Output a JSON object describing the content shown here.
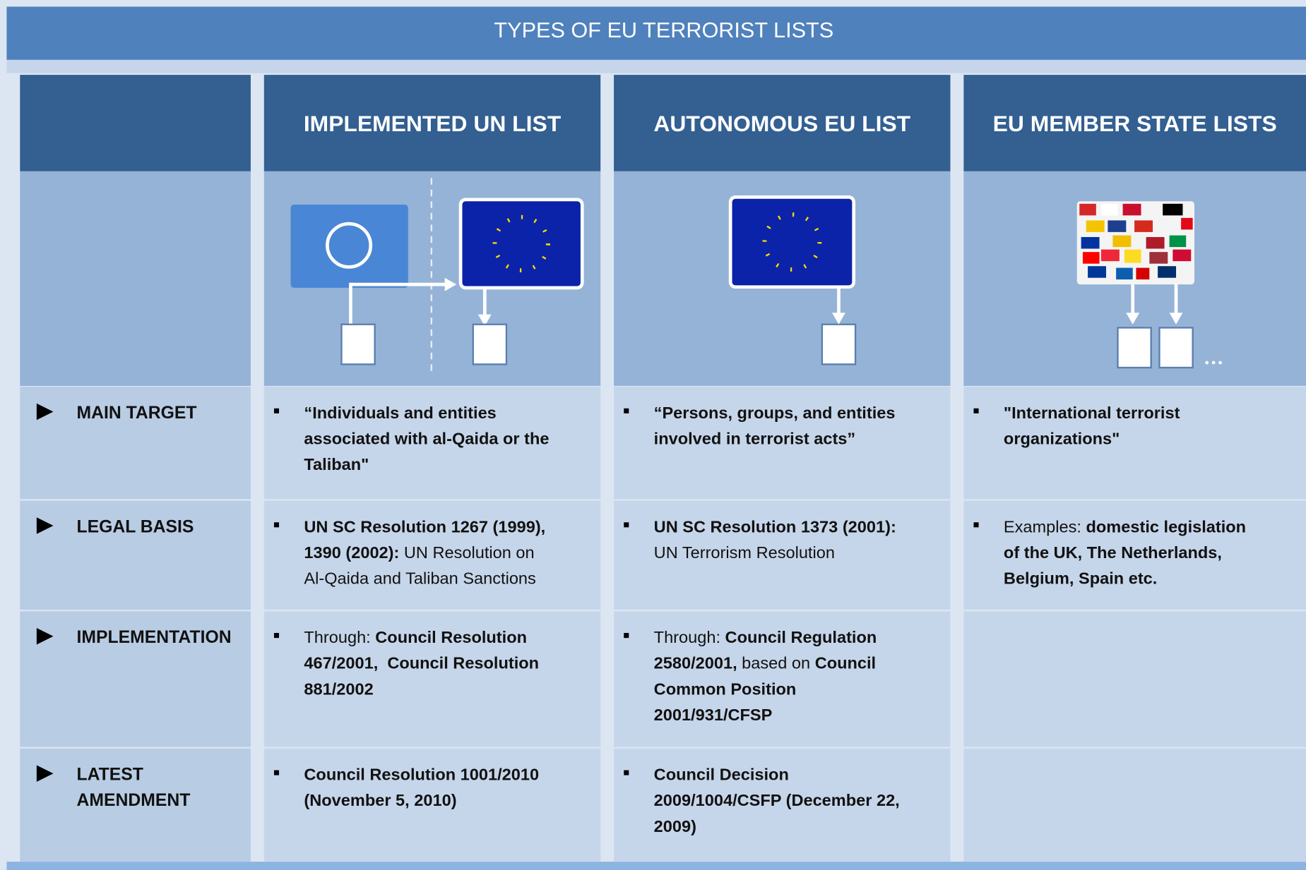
{
  "title": "TYPES OF EU TERRORIST LISTS",
  "columns": [
    "IMPLEMENTED UN LIST",
    "AUTONOMOUS EU LIST",
    "EU MEMBER STATE LISTS"
  ],
  "rows": [
    {
      "label": [
        "MAIN TARGET"
      ],
      "cells": [
        [
          [
            {
              "text": "“Individuals and entities",
              "bold": true
            }
          ],
          [
            {
              "text": "associated with al-Qaida or the",
              "bold": true
            }
          ],
          [
            {
              "text": "Taliban\"",
              "bold": true
            }
          ]
        ],
        [
          [
            {
              "text": "“Persons, groups, and entities",
              "bold": true
            }
          ],
          [
            {
              "text": "involved in terrorist acts”",
              "bold": true
            }
          ]
        ],
        [
          [
            {
              "text": "\"International terrorist",
              "bold": true
            }
          ],
          [
            {
              "text": "organizations\"",
              "bold": true
            }
          ]
        ]
      ]
    },
    {
      "label": [
        "LEGAL BASIS"
      ],
      "cells": [
        [
          [
            {
              "text": "UN SC Resolution 1267 (1999),",
              "bold": true
            }
          ],
          [
            {
              "text": "1390 (2002):",
              "bold": true
            },
            {
              "text": " UN Resolution on",
              "bold": false
            }
          ],
          [
            {
              "text": "Al-Qaida and Taliban Sanctions",
              "bold": false
            }
          ]
        ],
        [
          [
            {
              "text": "UN SC Resolution 1373 (2001):",
              "bold": true
            }
          ],
          [
            {
              "text": "UN Terrorism Resolution",
              "bold": false
            }
          ]
        ],
        [
          [
            {
              "text": "Examples: ",
              "bold": false
            },
            {
              "text": "domestic legislation",
              "bold": true
            }
          ],
          [
            {
              "text": "of the UK, The Netherlands,",
              "bold": true
            }
          ],
          [
            {
              "text": "Belgium, Spain etc.",
              "bold": true
            }
          ]
        ]
      ]
    },
    {
      "label": [
        "IMPLEMENTATION"
      ],
      "cells": [
        [
          [
            {
              "text": "Through: ",
              "bold": false
            },
            {
              "text": "Council Resolution",
              "bold": true
            }
          ],
          [
            {
              "text": "467/2001,  Council Resolution",
              "bold": true
            }
          ],
          [
            {
              "text": "881/2002",
              "bold": true
            }
          ]
        ],
        [
          [
            {
              "text": "Through: ",
              "bold": false
            },
            {
              "text": "Council Regulation",
              "bold": true
            }
          ],
          [
            {
              "text": "2580/2001,",
              "bold": true
            },
            {
              "text": " based on ",
              "bold": false
            },
            {
              "text": "Council",
              "bold": true
            }
          ],
          [
            {
              "text": "Common Position",
              "bold": true
            }
          ],
          [
            {
              "text": "2001/931/CFSP",
              "bold": true
            }
          ]
        ],
        []
      ]
    },
    {
      "label": [
        "LATEST",
        "AMENDMENT"
      ],
      "cells": [
        [
          [
            {
              "text": "Council Resolution 1001/2010",
              "bold": true
            }
          ],
          [
            {
              "text": "(November 5, 2010)",
              "bold": true
            }
          ]
        ],
        [
          [
            {
              "text": "Council Decision",
              "bold": true
            }
          ],
          [
            {
              "text": "2009/1004/CSFP (December 22,",
              "bold": true
            }
          ],
          [
            {
              "text": "2009)",
              "bold": true
            }
          ]
        ],
        []
      ]
    }
  ]
}
